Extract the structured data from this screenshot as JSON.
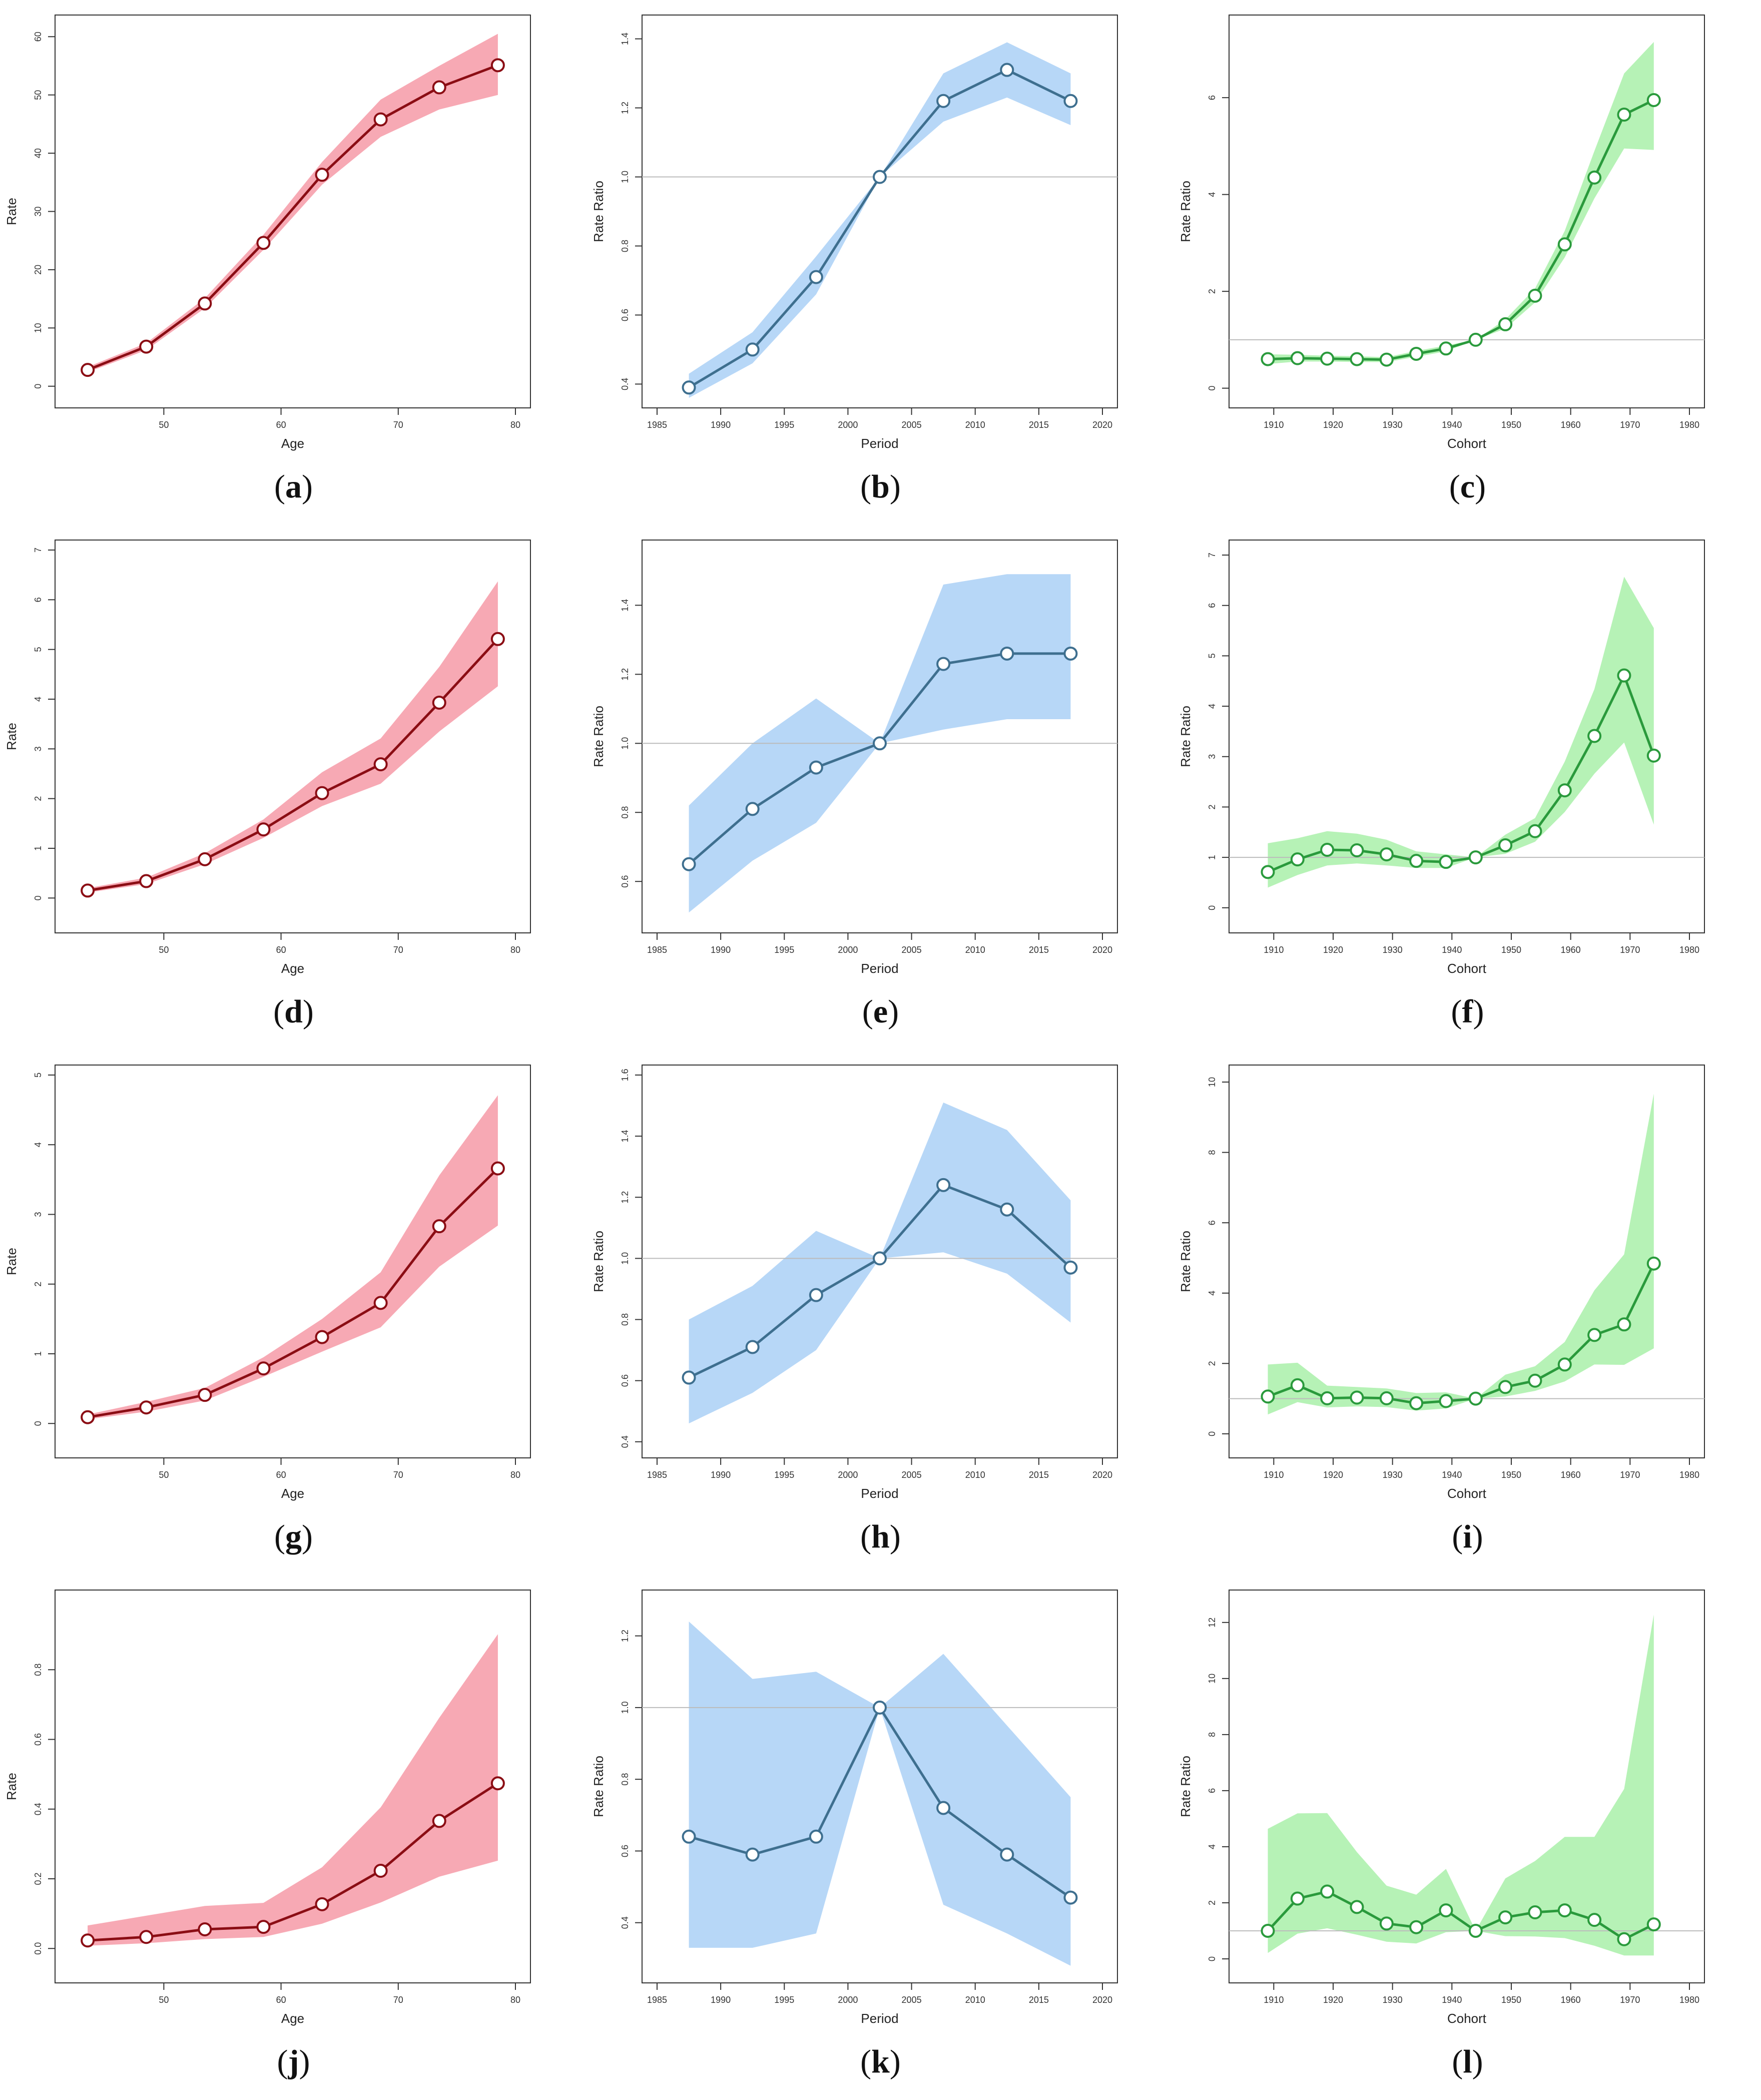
{
  "colors": {
    "age_line": "#8b0d14",
    "age_band": "#f7a9b4",
    "period_line": "#3e6f8f",
    "period_band": "#b7d7f7",
    "cohort_line": "#2a9a3c",
    "cohort_band": "#b6f2b6",
    "reference": "#bbbbbb",
    "marker_fill": "#ffffff"
  },
  "chart_data": [
    {
      "id": "a",
      "type": "line",
      "kind": "age",
      "caption": "a",
      "xlabel": "Age",
      "ylabel": "Rate",
      "xlim": [
        42,
        80
      ],
      "xticks": [
        50,
        60,
        70,
        80
      ],
      "ylim": [
        -2,
        62
      ],
      "yticks": [
        0,
        10,
        20,
        30,
        40,
        50,
        60
      ],
      "x": [
        43.5,
        48.5,
        53.5,
        58.5,
        63.5,
        68.5,
        73.5,
        78.5
      ],
      "values": [
        2.8,
        6.8,
        14.2,
        24.6,
        36.3,
        45.8,
        51.3,
        55.1
      ],
      "lower": [
        2.4,
        6.2,
        13.4,
        23.4,
        34.6,
        42.8,
        47.5,
        50.0
      ],
      "upper": [
        3.3,
        7.4,
        15.1,
        26.0,
        38.5,
        49.2,
        55.0,
        60.5
      ],
      "reference": null,
      "ytick_decimals": 0
    },
    {
      "id": "b",
      "type": "line",
      "kind": "period",
      "caption": "b",
      "xlabel": "Period",
      "ylabel": "Rate Ratio",
      "xlim": [
        1985,
        2020
      ],
      "xticks": [
        1985,
        1990,
        1995,
        2000,
        2005,
        2010,
        2015,
        2020
      ],
      "ylim": [
        0.36,
        1.44
      ],
      "yticks": [
        0.4,
        0.6,
        0.8,
        1.0,
        1.2,
        1.4
      ],
      "x": [
        1987.5,
        1992.5,
        1997.5,
        2002.5,
        2007.5,
        2012.5,
        2017.5
      ],
      "values": [
        0.39,
        0.5,
        0.71,
        1.0,
        1.22,
        1.31,
        1.22
      ],
      "lower": [
        0.36,
        0.46,
        0.66,
        1.0,
        1.16,
        1.23,
        1.15
      ],
      "upper": [
        0.43,
        0.55,
        0.77,
        1.0,
        1.3,
        1.39,
        1.3
      ],
      "reference": 1.0,
      "ytick_decimals": 1
    },
    {
      "id": "c",
      "type": "line",
      "kind": "cohort",
      "caption": "c",
      "xlabel": "Cohort",
      "ylabel": "Rate Ratio",
      "xlim": [
        1905,
        1980
      ],
      "xticks": [
        1910,
        1920,
        1930,
        1940,
        1950,
        1960,
        1970,
        1980
      ],
      "ylim": [
        -0.2,
        7.5
      ],
      "yticks": [
        0,
        2,
        4,
        6
      ],
      "x": [
        1909,
        1914,
        1919,
        1924,
        1929,
        1934,
        1939,
        1944,
        1949,
        1954,
        1959,
        1964,
        1969,
        1974
      ],
      "values": [
        0.6,
        0.62,
        0.61,
        0.6,
        0.59,
        0.71,
        0.82,
        1.0,
        1.32,
        1.91,
        2.97,
        4.35,
        5.65,
        5.95
      ],
      "lower": [
        0.5,
        0.55,
        0.55,
        0.54,
        0.54,
        0.65,
        0.76,
        1.0,
        1.23,
        1.77,
        2.7,
        3.92,
        4.95,
        4.92
      ],
      "upper": [
        0.7,
        0.69,
        0.67,
        0.66,
        0.64,
        0.77,
        0.88,
        1.0,
        1.42,
        2.06,
        3.25,
        4.9,
        6.5,
        7.15
      ],
      "reference": 1.0,
      "ytick_decimals": 0,
      "xtick_labels": [
        "1910",
        "1920",
        "1930",
        "1940",
        "1950",
        "1960",
        "1970",
        "1980"
      ]
    },
    {
      "id": "d",
      "type": "line",
      "kind": "age",
      "caption": "d",
      "xlabel": "Age",
      "ylabel": "Rate",
      "xlim": [
        42,
        80
      ],
      "xticks": [
        50,
        60,
        70,
        80
      ],
      "ylim": [
        -0.5,
        7
      ],
      "yticks": [
        0,
        1,
        2,
        3,
        4,
        5,
        6,
        7
      ],
      "x": [
        43.5,
        48.5,
        53.5,
        58.5,
        63.5,
        68.5,
        73.5,
        78.5
      ],
      "values": [
        0.15,
        0.34,
        0.78,
        1.38,
        2.11,
        2.69,
        3.93,
        5.21
      ],
      "lower": [
        0.11,
        0.28,
        0.68,
        1.21,
        1.85,
        2.3,
        3.35,
        4.26
      ],
      "upper": [
        0.2,
        0.41,
        0.9,
        1.58,
        2.53,
        3.21,
        4.65,
        6.37
      ],
      "reference": null,
      "ytick_decimals": 0
    },
    {
      "id": "e",
      "type": "line",
      "kind": "period",
      "caption": "e",
      "xlabel": "Period",
      "ylabel": "Rate Ratio",
      "xlim": [
        1985,
        2020
      ],
      "xticks": [
        1985,
        1990,
        1995,
        2000,
        2005,
        2010,
        2015,
        2020
      ],
      "ylim": [
        0.48,
        1.56
      ],
      "yticks": [
        0.6,
        0.8,
        1.0,
        1.2,
        1.4
      ],
      "x": [
        1987.5,
        1992.5,
        1997.5,
        2002.5,
        2007.5,
        2012.5,
        2017.5
      ],
      "values": [
        0.65,
        0.81,
        0.93,
        1.0,
        1.23,
        1.26,
        1.26
      ],
      "lower": [
        0.51,
        0.66,
        0.77,
        1.0,
        1.04,
        1.07,
        1.07
      ],
      "upper": [
        0.82,
        1.0,
        1.13,
        1.0,
        1.46,
        1.49,
        1.49
      ],
      "reference": 1.0,
      "ytick_decimals": 1
    },
    {
      "id": "f",
      "type": "line",
      "kind": "cohort",
      "caption": "f",
      "xlabel": "Cohort",
      "ylabel": "Rate Ratio",
      "xlim": [
        1905,
        1980
      ],
      "xticks": [
        1910,
        1920,
        1930,
        1940,
        1950,
        1960,
        1970,
        1980
      ],
      "ylim": [
        -0.3,
        7.1
      ],
      "yticks": [
        0,
        1,
        2,
        3,
        4,
        5,
        6,
        7
      ],
      "x": [
        1909,
        1914,
        1919,
        1924,
        1929,
        1934,
        1939,
        1944,
        1949,
        1954,
        1959,
        1964,
        1969,
        1974
      ],
      "values": [
        0.71,
        0.96,
        1.15,
        1.14,
        1.06,
        0.93,
        0.91,
        1.0,
        1.24,
        1.52,
        2.33,
        3.41,
        4.61,
        3.02
      ],
      "lower": [
        0.4,
        0.65,
        0.84,
        0.88,
        0.84,
        0.79,
        0.79,
        1.0,
        1.07,
        1.31,
        1.9,
        2.66,
        3.28,
        1.65
      ],
      "upper": [
        1.28,
        1.38,
        1.52,
        1.47,
        1.35,
        1.12,
        1.06,
        1.0,
        1.45,
        1.78,
        2.9,
        4.34,
        6.57,
        5.55
      ],
      "reference": 1.0,
      "ytick_decimals": 0
    },
    {
      "id": "g",
      "type": "line",
      "kind": "age",
      "caption": "g",
      "xlabel": "Age",
      "ylabel": "Rate",
      "xlim": [
        42,
        80
      ],
      "xticks": [
        50,
        60,
        70,
        80
      ],
      "ylim": [
        -0.35,
        5
      ],
      "yticks": [
        0,
        1,
        2,
        3,
        4,
        5
      ],
      "x": [
        43.5,
        48.5,
        53.5,
        58.5,
        63.5,
        68.5,
        73.5,
        78.5
      ],
      "values": [
        0.09,
        0.23,
        0.41,
        0.79,
        1.24,
        1.73,
        2.83,
        3.66
      ],
      "lower": [
        0.06,
        0.17,
        0.33,
        0.67,
        1.03,
        1.38,
        2.25,
        2.84
      ],
      "upper": [
        0.13,
        0.31,
        0.51,
        0.95,
        1.5,
        2.17,
        3.56,
        4.71
      ],
      "reference": null,
      "ytick_decimals": 0
    },
    {
      "id": "h",
      "type": "line",
      "kind": "period",
      "caption": "h",
      "xlabel": "Period",
      "ylabel": "Rate Ratio",
      "xlim": [
        1985,
        2020
      ],
      "xticks": [
        1985,
        1990,
        1995,
        2000,
        2005,
        2010,
        2015,
        2020
      ],
      "ylim": [
        0.38,
        1.6
      ],
      "yticks": [
        0.4,
        0.6,
        0.8,
        1.0,
        1.2,
        1.4,
        1.6
      ],
      "x": [
        1987.5,
        1992.5,
        1997.5,
        2002.5,
        2007.5,
        2012.5,
        2017.5
      ],
      "values": [
        0.61,
        0.71,
        0.88,
        1.0,
        1.24,
        1.16,
        0.97
      ],
      "lower": [
        0.46,
        0.56,
        0.7,
        1.0,
        1.02,
        0.95,
        0.79
      ],
      "upper": [
        0.8,
        0.91,
        1.09,
        1.0,
        1.51,
        1.42,
        1.19
      ],
      "reference": 1.0,
      "ytick_decimals": 1
    },
    {
      "id": "i",
      "type": "line",
      "kind": "cohort",
      "caption": "i",
      "xlabel": "Cohort",
      "ylabel": "Rate Ratio",
      "xlim": [
        1905,
        1980
      ],
      "xticks": [
        1910,
        1920,
        1930,
        1940,
        1950,
        1960,
        1970,
        1980
      ],
      "ylim": [
        -0.4,
        10.2
      ],
      "yticks": [
        0,
        2,
        4,
        6,
        8,
        10
      ],
      "x": [
        1909,
        1914,
        1919,
        1924,
        1929,
        1934,
        1939,
        1944,
        1949,
        1954,
        1959,
        1964,
        1969,
        1974
      ],
      "values": [
        1.06,
        1.38,
        1.01,
        1.03,
        1.01,
        0.87,
        0.93,
        1.0,
        1.33,
        1.51,
        1.97,
        2.81,
        3.11,
        4.84
      ],
      "lower": [
        0.55,
        0.9,
        0.75,
        0.78,
        0.76,
        0.66,
        0.72,
        1.0,
        1.06,
        1.22,
        1.49,
        1.97,
        1.96,
        2.43
      ],
      "upper": [
        1.97,
        2.02,
        1.37,
        1.33,
        1.29,
        1.16,
        1.18,
        1.0,
        1.68,
        1.92,
        2.61,
        4.08,
        5.1,
        9.67
      ],
      "reference": 1.0,
      "ytick_decimals": 0
    },
    {
      "id": "j",
      "type": "line",
      "kind": "age",
      "caption": "j",
      "xlabel": "Age",
      "ylabel": "Rate",
      "xlim": [
        42,
        80
      ],
      "xticks": [
        50,
        60,
        70,
        80
      ],
      "ylim": [
        -0.07,
        1.0
      ],
      "yticks": [
        0.0,
        0.2,
        0.4,
        0.6,
        0.8
      ],
      "x": [
        43.5,
        48.5,
        53.5,
        58.5,
        63.5,
        68.5,
        73.5,
        78.5
      ],
      "values": [
        0.023,
        0.033,
        0.055,
        0.062,
        0.127,
        0.223,
        0.366,
        0.474
      ],
      "lower": [
        0.008,
        0.015,
        0.027,
        0.033,
        0.071,
        0.132,
        0.206,
        0.252
      ],
      "upper": [
        0.066,
        0.094,
        0.122,
        0.131,
        0.233,
        0.405,
        0.662,
        0.902
      ],
      "reference": null,
      "ytick_decimals": 1
    },
    {
      "id": "k",
      "type": "line",
      "kind": "period",
      "caption": "k",
      "xlabel": "Period",
      "ylabel": "Rate Ratio",
      "xlim": [
        1985,
        2020
      ],
      "xticks": [
        1985,
        1990,
        1995,
        2000,
        2005,
        2010,
        2015,
        2020
      ],
      "ylim": [
        0.26,
        1.3
      ],
      "yticks": [
        0.4,
        0.6,
        0.8,
        1.0,
        1.2
      ],
      "x": [
        1987.5,
        1992.5,
        1997.5,
        2002.5,
        2007.5,
        2012.5,
        2017.5
      ],
      "values": [
        0.64,
        0.59,
        0.64,
        1.0,
        0.72,
        0.59,
        0.47
      ],
      "lower": [
        0.33,
        0.33,
        0.37,
        1.0,
        0.45,
        0.37,
        0.28
      ],
      "upper": [
        1.24,
        1.08,
        1.1,
        1.0,
        1.15,
        0.95,
        0.75
      ],
      "reference": 1.0,
      "ytick_decimals": 1
    },
    {
      "id": "l",
      "type": "line",
      "kind": "cohort",
      "caption": "l",
      "xlabel": "Cohort",
      "ylabel": "Rate Ratio",
      "xlim": [
        1905,
        1980
      ],
      "xticks": [
        1910,
        1920,
        1930,
        1940,
        1950,
        1960,
        1970,
        1980
      ],
      "ylim": [
        -0.5,
        12.8
      ],
      "yticks": [
        0,
        2,
        4,
        6,
        8,
        10,
        12
      ],
      "x": [
        1909,
        1914,
        1919,
        1924,
        1929,
        1934,
        1939,
        1944,
        1949,
        1954,
        1959,
        1964,
        1969,
        1974
      ],
      "values": [
        1.0,
        2.15,
        2.4,
        1.85,
        1.26,
        1.13,
        1.73,
        1.0,
        1.48,
        1.66,
        1.73,
        1.39,
        0.7,
        1.23
      ],
      "lower": [
        0.21,
        0.9,
        1.09,
        0.86,
        0.61,
        0.55,
        0.95,
        1.0,
        0.81,
        0.8,
        0.74,
        0.47,
        0.12,
        0.12
      ],
      "upper": [
        4.64,
        5.19,
        5.2,
        3.81,
        2.61,
        2.29,
        3.21,
        1.0,
        2.87,
        3.49,
        4.35,
        4.35,
        6.06,
        12.28
      ],
      "reference": 1.0,
      "ytick_decimals": 0
    }
  ]
}
